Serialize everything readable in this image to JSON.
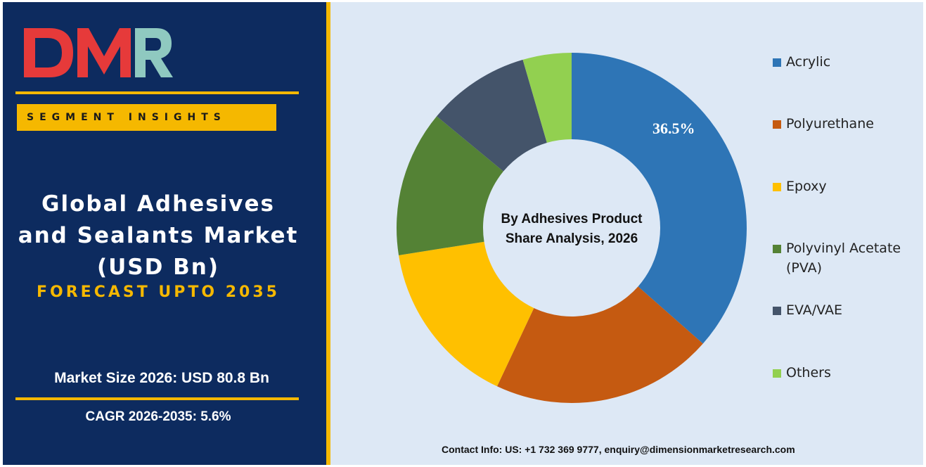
{
  "brand": {
    "logo_text": "DMR"
  },
  "left_panel": {
    "segment_label": "SEGMENT INSIGHTS",
    "title_line1": "Global Adhesives",
    "title_line2": "and Sealants Market",
    "title_line3": "(USD Bn)",
    "forecast": "FORECAST UPTO 2035",
    "market_size": "Market Size 2026: USD 80.8 Bn",
    "cagr": "CAGR 2026-2035: 5.6%"
  },
  "contact": "Contact Info: US: +1 732 369 9777, enquiry@dimensionmarketresearch.com",
  "chart_data": {
    "type": "pie",
    "title": "By Adhesives Product Share Analysis, 2026",
    "center_line1": "By Adhesives Product",
    "center_line2": "Share Analysis, 2026",
    "categories": [
      "Acrylic",
      "Polyurethane",
      "Epoxy",
      "Polyvinyl Acetate (PVA)",
      "EVA/VAE",
      "Others"
    ],
    "values": [
      36.5,
      20.5,
      15.5,
      13.5,
      9.5,
      4.5
    ],
    "colors": [
      "#2e75b6",
      "#c55a11",
      "#ffc000",
      "#548235",
      "#44546a",
      "#92d050"
    ],
    "data_labels": [
      "36.5%",
      "",
      "",
      "",
      "",
      ""
    ],
    "legend_position": "right",
    "style": "donut"
  }
}
